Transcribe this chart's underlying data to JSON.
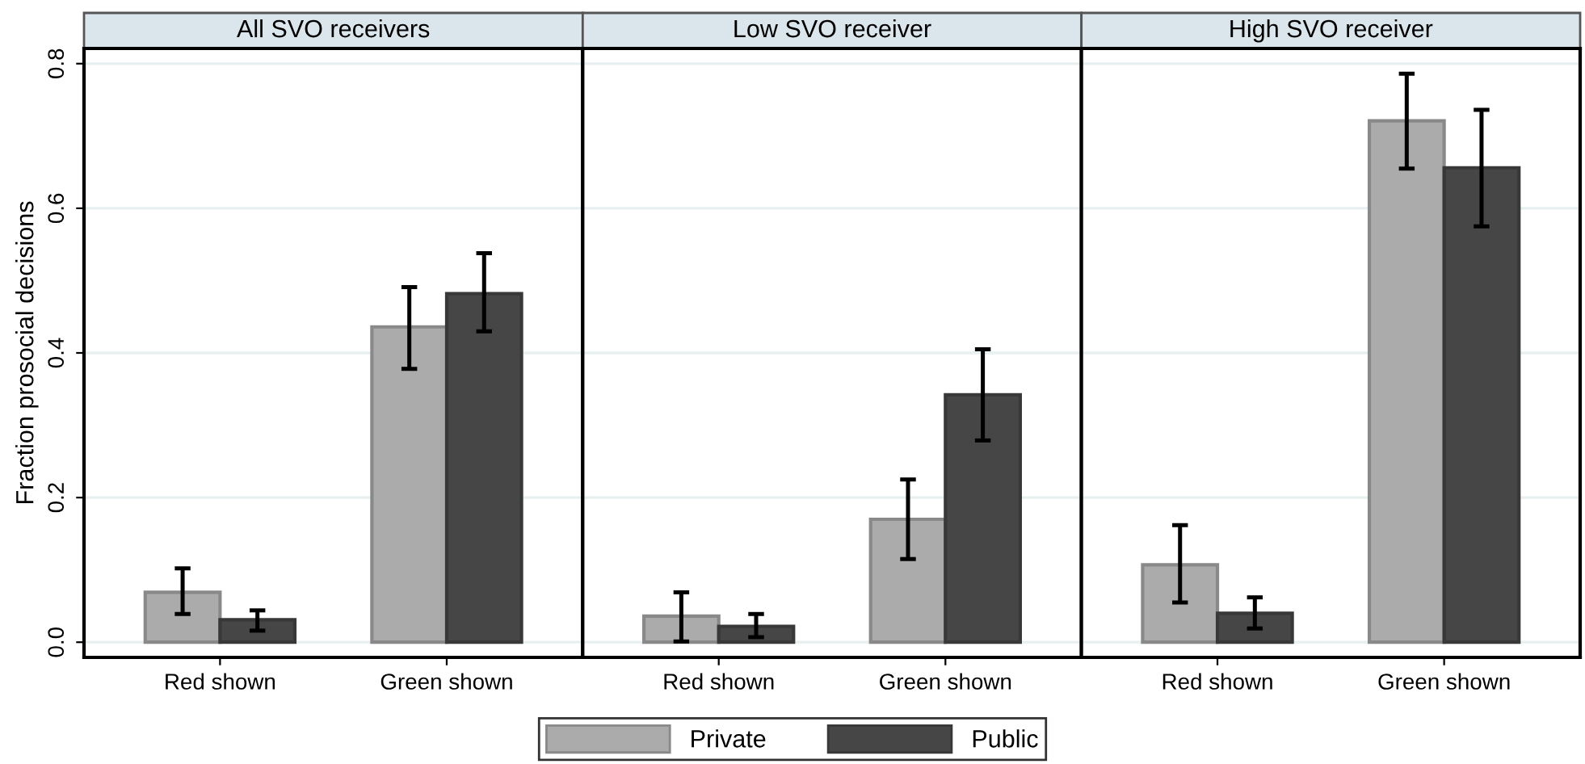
{
  "chart_data": [
    {
      "type": "bar",
      "title": "All SVO receivers",
      "ylabel": "Fraction prosocial decisions",
      "categories": [
        "Red shown",
        "Green shown"
      ],
      "series": [
        {
          "name": "Private",
          "color": "#ababab",
          "values": [
            0.069,
            0.436
          ],
          "errors": [
            [
              0.039,
              0.102
            ],
            [
              0.378,
              0.491
            ]
          ]
        },
        {
          "name": "Public",
          "color": "#464646",
          "values": [
            0.031,
            0.482
          ],
          "errors": [
            [
              0.016,
              0.044
            ],
            [
              0.43,
              0.538
            ]
          ]
        }
      ],
      "ylim": [
        -0.021,
        0.821
      ],
      "yticks": [
        {
          "value": 0,
          "label": "0.0"
        },
        0.2,
        0.4,
        0.6,
        0.8
      ],
      "grid": "y",
      "legend": "bottom"
    },
    {
      "type": "bar",
      "title": "Low SVO receiver",
      "categories": [
        "Red shown",
        "Green shown"
      ],
      "series": [
        {
          "color": "#ababab",
          "values": [
            0.036,
            0.17
          ],
          "errors": [
            [
              0.001,
              0.069
            ],
            [
              0.115,
              0.225
            ]
          ]
        },
        {
          "color": "#464646",
          "values": [
            0.022,
            0.342
          ],
          "errors": [
            [
              0.007,
              0.039
            ],
            [
              0.279,
              0.405
            ]
          ]
        }
      ],
      "ylim": [
        -0.021,
        0.821
      ],
      "yticks": [
        0,
        0.2,
        0.4,
        0.6,
        0.8
      ],
      "grid": "y",
      "tick_labels": "x"
    },
    {
      "type": "bar",
      "title": "High SVO receiver",
      "categories": [
        "Red shown",
        "Green shown"
      ],
      "series": [
        {
          "color": "#ababab",
          "values": [
            0.107,
            0.721
          ],
          "errors": [
            [
              0.055,
              0.162
            ],
            [
              0.655,
              0.786
            ]
          ]
        },
        {
          "color": "#464646",
          "values": [
            0.04,
            0.656
          ],
          "errors": [
            [
              0.019,
              0.062
            ],
            [
              0.575,
              0.736
            ]
          ]
        }
      ],
      "ylim": [
        -0.021,
        0.821
      ],
      "yticks": [
        0,
        0.2,
        0.4,
        0.6,
        0.8
      ],
      "grid": "y",
      "tick_labels": "x"
    }
  ]
}
